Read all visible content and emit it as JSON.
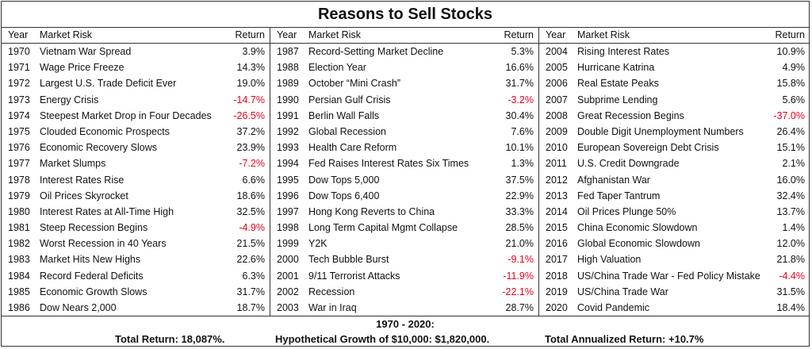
{
  "title": "Reasons to Sell Stocks",
  "headers": {
    "year": "Year",
    "risk": "Market Risk",
    "return": "Return"
  },
  "columns": [
    {
      "rows": [
        {
          "year": "1970",
          "risk": "Vietnam War Spread",
          "ret": "3.9%",
          "neg": false
        },
        {
          "year": "1971",
          "risk": "Wage Price Freeze",
          "ret": "14.3%",
          "neg": false
        },
        {
          "year": "1972",
          "risk": "Largest U.S. Trade Deficit Ever",
          "ret": "19.0%",
          "neg": false
        },
        {
          "year": "1973",
          "risk": "Energy Crisis",
          "ret": "-14.7%",
          "neg": true
        },
        {
          "year": "1974",
          "risk": "Steepest Market Drop in Four Decades",
          "ret": "-26.5%",
          "neg": true
        },
        {
          "year": "1975",
          "risk": "Clouded Economic Prospects",
          "ret": "37.2%",
          "neg": false
        },
        {
          "year": "1976",
          "risk": "Economic Recovery Slows",
          "ret": "23.9%",
          "neg": false
        },
        {
          "year": "1977",
          "risk": "Market Slumps",
          "ret": "-7.2%",
          "neg": true
        },
        {
          "year": "1978",
          "risk": "Interest Rates Rise",
          "ret": "6.6%",
          "neg": false
        },
        {
          "year": "1979",
          "risk": "Oil Prices Skyrocket",
          "ret": "18.6%",
          "neg": false
        },
        {
          "year": "1980",
          "risk": "Interest Rates at All-Time High",
          "ret": "32.5%",
          "neg": false
        },
        {
          "year": "1981",
          "risk": "Steep Recession Begins",
          "ret": "-4.9%",
          "neg": true
        },
        {
          "year": "1982",
          "risk": "Worst Recession in 40 Years",
          "ret": "21.5%",
          "neg": false
        },
        {
          "year": "1983",
          "risk": "Market Hits New Highs",
          "ret": "22.6%",
          "neg": false
        },
        {
          "year": "1984",
          "risk": "Record Federal Deficits",
          "ret": "6.3%",
          "neg": false
        },
        {
          "year": "1985",
          "risk": "Economic Growth Slows",
          "ret": "31.7%",
          "neg": false
        },
        {
          "year": "1986",
          "risk": "Dow Nears 2,000",
          "ret": "18.7%",
          "neg": false
        }
      ]
    },
    {
      "rows": [
        {
          "year": "1987",
          "risk": "Record-Setting Market Decline",
          "ret": "5.3%",
          "neg": false
        },
        {
          "year": "1988",
          "risk": "Election Year",
          "ret": "16.6%",
          "neg": false
        },
        {
          "year": "1989",
          "risk": "October “Mini Crash”",
          "ret": "31.7%",
          "neg": false
        },
        {
          "year": "1990",
          "risk": "Persian Gulf Crisis",
          "ret": "-3.2%",
          "neg": true
        },
        {
          "year": "1991",
          "risk": "Berlin Wall Falls",
          "ret": "30.4%",
          "neg": false
        },
        {
          "year": "1992",
          "risk": "Global Recession",
          "ret": "7.6%",
          "neg": false
        },
        {
          "year": "1993",
          "risk": "Health Care Reform",
          "ret": "10.1%",
          "neg": false
        },
        {
          "year": "1994",
          "risk": "Fed Raises Interest Rates Six Times",
          "ret": "1.3%",
          "neg": false
        },
        {
          "year": "1995",
          "risk": "Dow Tops 5,000",
          "ret": "37.5%",
          "neg": false
        },
        {
          "year": "1996",
          "risk": "Dow Tops 6,400",
          "ret": "22.9%",
          "neg": false
        },
        {
          "year": "1997",
          "risk": "Hong Kong Reverts to China",
          "ret": "33.3%",
          "neg": false
        },
        {
          "year": "1998",
          "risk": "Long Term Capital Mgmt Collapse",
          "ret": "28.5%",
          "neg": false
        },
        {
          "year": "1999",
          "risk": "Y2K",
          "ret": "21.0%",
          "neg": false
        },
        {
          "year": "2000",
          "risk": "Tech Bubble Burst",
          "ret": "-9.1%",
          "neg": true
        },
        {
          "year": "2001",
          "risk": "9/11 Terrorist Attacks",
          "ret": "-11.9%",
          "neg": true
        },
        {
          "year": "2002",
          "risk": "Recession",
          "ret": "-22.1%",
          "neg": true
        },
        {
          "year": "2003",
          "risk": "War in Iraq",
          "ret": "28.7%",
          "neg": false
        }
      ]
    },
    {
      "rows": [
        {
          "year": "2004",
          "risk": "Rising Interest Rates",
          "ret": "10.9%",
          "neg": false
        },
        {
          "year": "2005",
          "risk": "Hurricane Katrina",
          "ret": "4.9%",
          "neg": false
        },
        {
          "year": "2006",
          "risk": "Real Estate Peaks",
          "ret": "15.8%",
          "neg": false
        },
        {
          "year": "2007",
          "risk": "Subprime Lending",
          "ret": "5.6%",
          "neg": false
        },
        {
          "year": "2008",
          "risk": "Great Recession Begins",
          "ret": "-37.0%",
          "neg": true
        },
        {
          "year": "2009",
          "risk": "Double Digit Unemployment Numbers",
          "ret": "26.4%",
          "neg": false
        },
        {
          "year": "2010",
          "risk": "European Sovereign Debt Crisis",
          "ret": "15.1%",
          "neg": false
        },
        {
          "year": "2011",
          "risk": "U.S. Credit Downgrade",
          "ret": "2.1%",
          "neg": false
        },
        {
          "year": "2012",
          "risk": "Afghanistan War",
          "ret": "16.0%",
          "neg": false
        },
        {
          "year": "2013",
          "risk": "Fed Taper Tantrum",
          "ret": "32.4%",
          "neg": false
        },
        {
          "year": "2014",
          "risk": "Oil Prices Plunge 50%",
          "ret": "13.7%",
          "neg": false
        },
        {
          "year": "2015",
          "risk": "China Economic Slowdown",
          "ret": "1.4%",
          "neg": false
        },
        {
          "year": "2016",
          "risk": "Global Economic Slowdown",
          "ret": "12.0%",
          "neg": false
        },
        {
          "year": "2017",
          "risk": "High Valuation",
          "ret": "21.8%",
          "neg": false
        },
        {
          "year": "2018",
          "risk": "US/China Trade War - Fed Policy Mistake",
          "ret": "-4.4%",
          "neg": true
        },
        {
          "year": "2019",
          "risk": "US/China Trade War",
          "ret": "31.5%",
          "neg": false
        },
        {
          "year": "2020",
          "risk": "Covid Pandemic",
          "ret": "18.4%",
          "neg": false
        }
      ]
    }
  ],
  "footer": {
    "range": "1970 - 2020:",
    "total_return": "Total Return: 18,087%.",
    "growth": "Hypothetical Growth of $10,000: $1,820,000.",
    "annualized": "Total Annualized Return: +10.7%"
  },
  "colors": {
    "negative": "#e8001c",
    "text": "#111111",
    "border": "#333333"
  }
}
